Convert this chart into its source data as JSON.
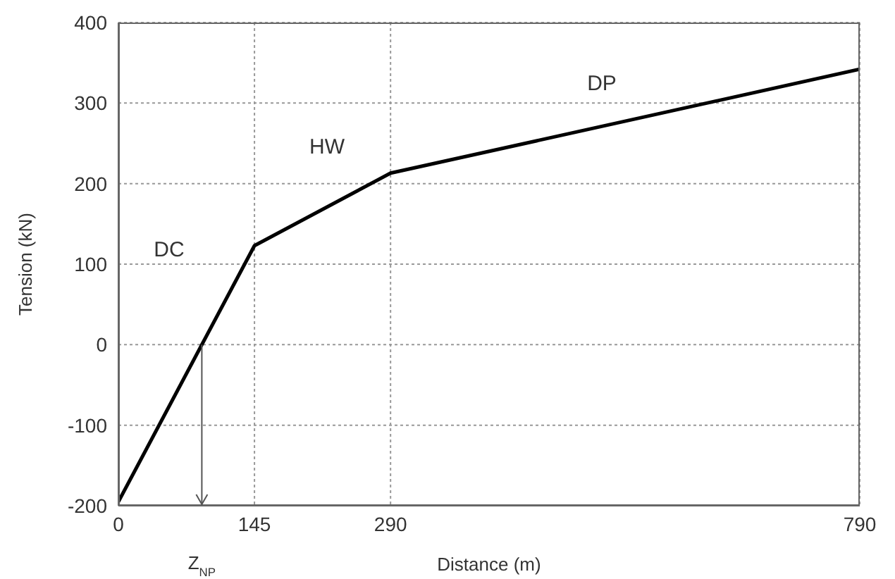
{
  "chart_data": {
    "type": "line",
    "xlabel": "Distance (m)",
    "ylabel": "Tension (kN)",
    "x": [
      0,
      145,
      290,
      790
    ],
    "series": [
      {
        "color": "#000000",
        "values": [
          -195,
          123,
          213,
          342
        ]
      }
    ],
    "xlim": [
      0,
      790
    ],
    "xticks": [
      0,
      145,
      290,
      790
    ],
    "ylim": [
      -200,
      400
    ],
    "yticks": [
      -200,
      -100,
      0,
      100,
      200,
      300,
      400
    ],
    "grid": true,
    "line_style": "solid",
    "marker": "none",
    "annotations": [
      "DC",
      "HW",
      "DP",
      "Z$_{NP}$"
    ]
  }
}
